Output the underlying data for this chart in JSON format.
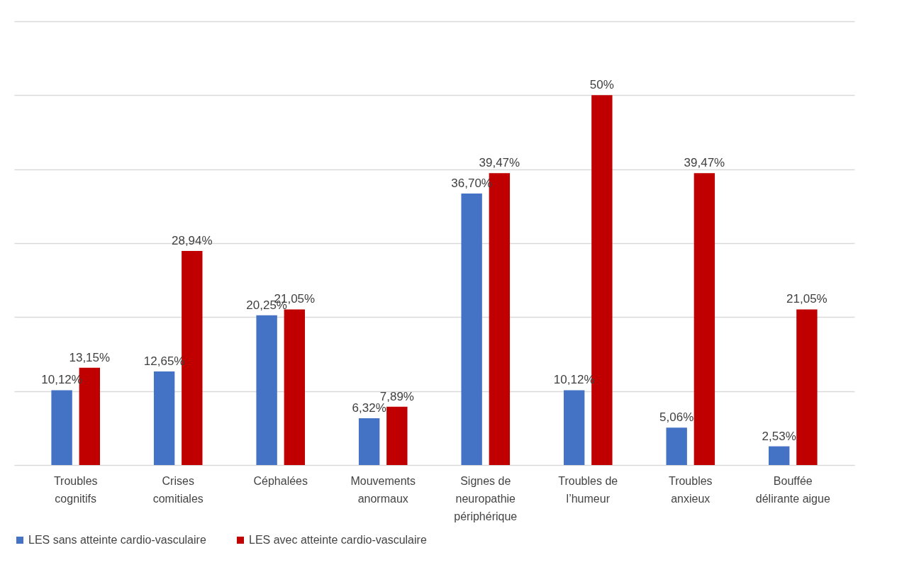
{
  "chart_data": {
    "type": "bar",
    "categories": [
      "Troubles cognitifs",
      "Crises comitiales",
      "Céphalées",
      "Mouvements anormaux",
      "Signes de neuropathie périphérique",
      "Troubles de l’humeur",
      "Troubles anxieux",
      "Bouffée délirante aigue"
    ],
    "series": [
      {
        "name": "LES sans atteinte cardio-vasculaire",
        "color": "#4472c4",
        "values": [
          10.12,
          12.65,
          20.25,
          6.32,
          36.7,
          10.12,
          5.06,
          2.53
        ],
        "value_labels": [
          "10,12%",
          "12,65%",
          "20,25%",
          "6,32%",
          "36,70%",
          "10,12%",
          "5,06%",
          "2,53%"
        ]
      },
      {
        "name": "LES avec atteinte cardio-vasculaire",
        "color": "#c00000",
        "values": [
          13.15,
          28.94,
          21.05,
          7.89,
          39.47,
          50,
          39.47,
          21.05
        ],
        "value_labels": [
          "13,15%",
          "28,94%",
          "21,05%",
          "7,89%",
          "39,47%",
          "50%",
          "39,47%",
          "21,05%"
        ]
      }
    ],
    "ylim": [
      0,
      60
    ],
    "yticks": [
      {
        "value": 0,
        "label": null
      },
      {
        "value": 10,
        "label": null
      },
      {
        "value": 20,
        "label": null
      },
      {
        "value": 30,
        "label": null
      },
      {
        "value": 40,
        "label": null
      },
      {
        "value": 50,
        "label": null
      },
      {
        "value": 60,
        "label": null
      }
    ],
    "grid": "y",
    "legend": "bottom",
    "tick_labels": "x"
  }
}
